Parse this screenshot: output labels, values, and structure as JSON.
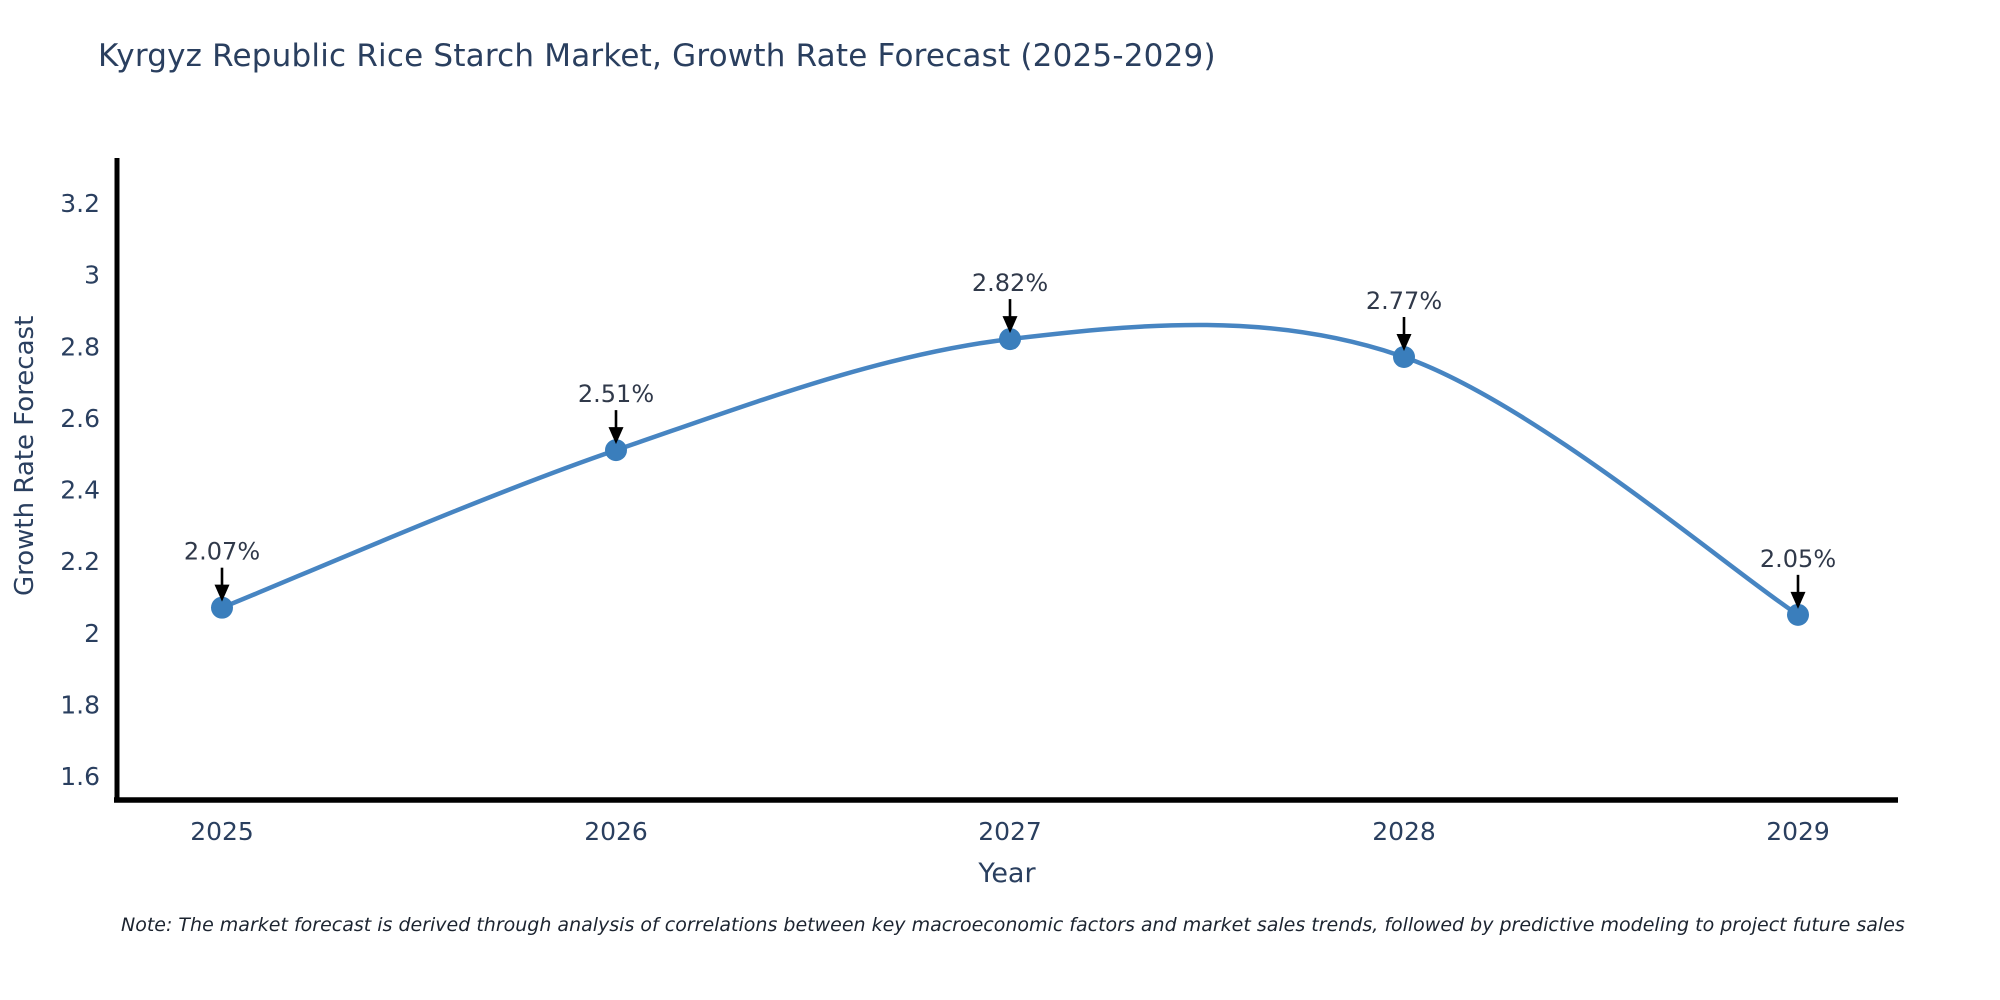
{
  "title": "Kyrgyz Republic Rice Starch Market, Growth Rate Forecast (2025-2029)",
  "note": "Note: The market forecast is derived through analysis of correlations between key macroeconomic factors and market sales trends, followed by predictive modeling to project future sales",
  "chart_data": {
    "type": "line",
    "line_shape": "spline",
    "title": "Kyrgyz Republic Rice Starch Market, Growth Rate Forecast (2025-2029)",
    "xlabel": "Year",
    "ylabel": "Growth Rate Forecast",
    "x": [
      2025,
      2026,
      2027,
      2028,
      2029
    ],
    "values": [
      2.07,
      2.51,
      2.82,
      2.77,
      2.05
    ],
    "point_labels": [
      "2.07%",
      "2.51%",
      "2.82%",
      "2.77%",
      "2.05%"
    ],
    "y_ticks": [
      3.2,
      3,
      2.8,
      2.6,
      2.4,
      2.2,
      2,
      1.8,
      1.6
    ],
    "ylim": [
      1.53,
      3.32
    ],
    "grid": false,
    "legend": "none",
    "annotation_arrows": true,
    "colors": {
      "line": "#4785c2",
      "marker": "#3a7ebc",
      "axis": "#000000",
      "tick_text": "#2a3f5f",
      "annotation_text": "#30394a",
      "title_text": "#2a3f5f",
      "background": "#ffffff"
    }
  }
}
